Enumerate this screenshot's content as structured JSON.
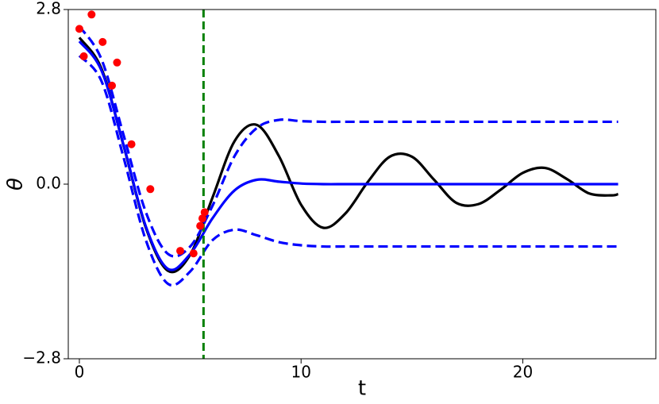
{
  "chart_data": {
    "type": "line",
    "xlabel": "t",
    "ylabel": "θ",
    "xlim": [
      -0.5,
      26
    ],
    "ylim": [
      -2.8,
      2.8
    ],
    "xticks": [
      0,
      10,
      20
    ],
    "yticks": [
      {
        "value": -2.8,
        "label": "−2.8"
      },
      {
        "value": 0,
        "label": "0.0"
      },
      2.8
    ],
    "x": [
      0,
      1,
      2,
      3,
      4,
      5,
      6,
      7,
      8,
      9,
      10,
      11,
      12,
      13,
      14,
      15,
      16,
      17,
      18,
      19,
      20,
      21,
      22,
      23,
      24,
      24.3
    ],
    "series": [
      {
        "color": "#000000",
        "dashed": false,
        "values": [
          2.35,
          1.85,
          0.61,
          -0.7,
          -1.39,
          -1.13,
          -0.22,
          0.69,
          0.95,
          0.45,
          -0.33,
          -0.7,
          -0.47,
          0.03,
          0.44,
          0.44,
          0.07,
          -0.3,
          -0.32,
          -0.09,
          0.18,
          0.26,
          0.08,
          -0.15,
          -0.18,
          -0.16
        ]
      },
      {
        "color": "#0000ff",
        "dashed": false,
        "values": [
          2.29,
          1.82,
          0.62,
          -0.68,
          -1.36,
          -1.12,
          -0.55,
          -0.1,
          0.07,
          0.04,
          0.01,
          0,
          0,
          0,
          0,
          0,
          0,
          0,
          0,
          0,
          0,
          0,
          0,
          0,
          0,
          0
        ]
      },
      {
        "color": "#0000ff",
        "dashed": true,
        "values": [
          2.53,
          2.0,
          0.78,
          -0.45,
          -1.12,
          -1.0,
          -0.35,
          0.45,
          0.9,
          1.03,
          1.01,
          1.0,
          1.0,
          1.0,
          1.0,
          1.0,
          1.0,
          1.0,
          1.0,
          1.0,
          1.0,
          1.0,
          1.0,
          1.0,
          1.0,
          1.0
        ]
      },
      {
        "color": "#0000ff",
        "dashed": true,
        "values": [
          2.06,
          1.65,
          0.42,
          -0.9,
          -1.6,
          -1.4,
          -0.9,
          -0.73,
          -0.82,
          -0.93,
          -0.98,
          -1.0,
          -1.0,
          -1.0,
          -1.0,
          -1.0,
          -1.0,
          -1.0,
          -1.0,
          -1.0,
          -1.0,
          -1.0,
          -1.0,
          -1.0,
          -1.0,
          -1.0
        ]
      }
    ],
    "points": {
      "color": "#ff0000",
      "x": [
        0,
        0.2,
        0.55,
        1.05,
        1.47,
        1.7,
        2.35,
        3.2,
        4.55,
        5.15,
        5.45,
        5.55,
        5.65
      ],
      "values": [
        2.49,
        2.05,
        2.72,
        2.28,
        1.58,
        1.95,
        0.64,
        -0.08,
        -1.07,
        -1.11,
        -0.67,
        -0.55,
        -0.45
      ]
    },
    "vline": {
      "x": 5.6,
      "color": "#008000",
      "dashed": true
    }
  }
}
